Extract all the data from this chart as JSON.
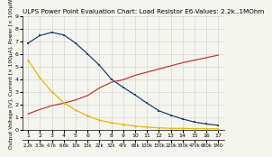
{
  "title": "ULPS Power Point Evaluation Chart: Load Resistor E6-Values: 2.2k..1MOhm",
  "ylabel": "Output Voltage [V], Current [× 100µA], Power [× 100µW]",
  "x_ticks_num": [
    1,
    2,
    3,
    4,
    5,
    6,
    7,
    8,
    9,
    10,
    11,
    12,
    13,
    14,
    15,
    16,
    17
  ],
  "x_ticks_bottom": [
    "2.2k",
    "3.3k",
    "4.7k",
    "6.6k",
    "10k",
    "15k",
    "22k",
    "32k",
    "47k",
    "68k",
    "100k",
    "150k",
    "220k",
    "330k",
    "470k",
    "680k",
    "1MO"
  ],
  "xlim": [
    0.5,
    17.5
  ],
  "ylim": [
    0,
    9
  ],
  "yticks": [
    0,
    1,
    2,
    3,
    4,
    5,
    6,
    7,
    8,
    9
  ],
  "blue_y": [
    6.85,
    7.45,
    7.7,
    7.5,
    6.85,
    6.0,
    5.1,
    4.0,
    3.35,
    2.75,
    2.1,
    1.5,
    1.15,
    0.85,
    0.6,
    0.45,
    0.35
  ],
  "red_y": [
    1.25,
    1.6,
    1.9,
    2.1,
    2.35,
    2.7,
    3.3,
    3.75,
    3.95,
    4.3,
    4.55,
    4.8,
    5.05,
    5.3,
    5.5,
    5.7,
    5.9
  ],
  "yellow_y": [
    5.5,
    4.1,
    3.0,
    2.15,
    1.55,
    1.1,
    0.75,
    0.55,
    0.4,
    0.3,
    0.2,
    0.15,
    0.1,
    0.1,
    0.08,
    0.07,
    0.07
  ],
  "blue_color": "#1a3f7a",
  "red_color": "#c0392b",
  "yellow_color": "#e8b800",
  "bg_color": "#f5f5f0",
  "grid_color": "#cccccc",
  "title_fontsize": 5.2,
  "axis_fontsize": 4.2,
  "tick_fontsize": 4.5
}
